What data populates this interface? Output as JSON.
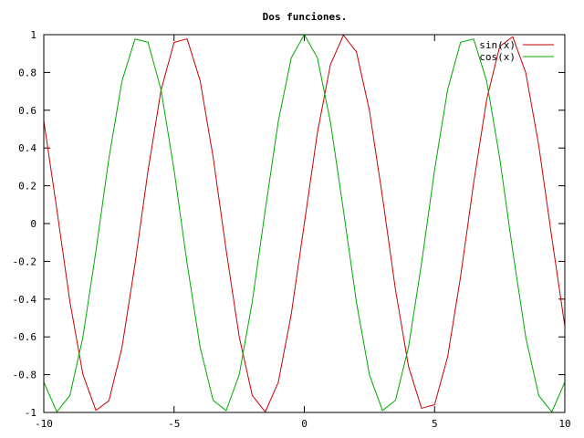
{
  "chart_data": {
    "type": "line",
    "title": "Dos funciones.",
    "xlabel": "",
    "ylabel": "",
    "xlim": [
      -10,
      10
    ],
    "ylim": [
      -1,
      1
    ],
    "x_ticks": [
      -10,
      -5,
      0,
      5,
      10
    ],
    "y_ticks": [
      -1,
      -0.8,
      -0.6,
      -0.4,
      -0.2,
      0,
      0.2,
      0.4,
      0.6,
      0.8,
      1
    ],
    "x_tick_labels": [
      "-10",
      "-5",
      "0",
      "5",
      "10"
    ],
    "y_tick_labels": [
      "-1",
      "-0.8",
      "-0.6",
      "-0.4",
      "-0.2",
      "0",
      "0.2",
      "0.4",
      "0.6",
      "0.8",
      "1"
    ],
    "grid": false,
    "legend_position": "top-right",
    "series": [
      {
        "name": "sin(x)",
        "color": "#cc0000",
        "x": [
          -10,
          -9.5,
          -9,
          -8.5,
          -8,
          -7.5,
          -7,
          -6.5,
          -6,
          -5.5,
          -5,
          -4.5,
          -4,
          -3.5,
          -3,
          -2.5,
          -2,
          -1.5,
          -1,
          -0.5,
          0,
          0.5,
          1,
          1.5,
          2,
          2.5,
          3,
          3.5,
          4,
          4.5,
          5,
          5.5,
          6,
          6.5,
          7,
          7.5,
          8,
          8.5,
          9,
          9.5,
          10
        ],
        "y": [
          0.544,
          0.075,
          -0.412,
          -0.798,
          -0.989,
          -0.938,
          -0.657,
          -0.215,
          0.279,
          0.706,
          0.959,
          0.978,
          0.757,
          0.351,
          -0.141,
          -0.598,
          -0.909,
          -0.997,
          -0.841,
          -0.479,
          0,
          0.479,
          0.841,
          0.997,
          0.909,
          0.598,
          0.141,
          -0.351,
          -0.757,
          -0.978,
          -0.959,
          -0.706,
          -0.279,
          0.215,
          0.657,
          0.938,
          0.989,
          0.798,
          0.412,
          -0.075,
          -0.544
        ]
      },
      {
        "name": "cos(x)",
        "color": "#00aa00",
        "x": [
          -10,
          -9.5,
          -9,
          -8.5,
          -8,
          -7.5,
          -7,
          -6.5,
          -6,
          -5.5,
          -5,
          -4.5,
          -4,
          -3.5,
          -3,
          -2.5,
          -2,
          -1.5,
          -1,
          -0.5,
          0,
          0.5,
          1,
          1.5,
          2,
          2.5,
          3,
          3.5,
          4,
          4.5,
          5,
          5.5,
          6,
          6.5,
          7,
          7.5,
          8,
          8.5,
          9,
          9.5,
          10
        ],
        "y": [
          -0.839,
          -0.997,
          -0.911,
          -0.602,
          -0.146,
          0.347,
          0.754,
          0.977,
          0.96,
          0.709,
          0.284,
          -0.211,
          -0.654,
          -0.936,
          -0.99,
          -0.801,
          -0.416,
          0.071,
          0.54,
          0.878,
          1,
          0.878,
          0.54,
          0.071,
          -0.416,
          -0.801,
          -0.99,
          -0.936,
          -0.654,
          -0.211,
          0.284,
          0.709,
          0.96,
          0.977,
          0.754,
          0.347,
          -0.146,
          -0.602,
          -0.911,
          -0.997,
          -0.839
        ]
      }
    ]
  }
}
